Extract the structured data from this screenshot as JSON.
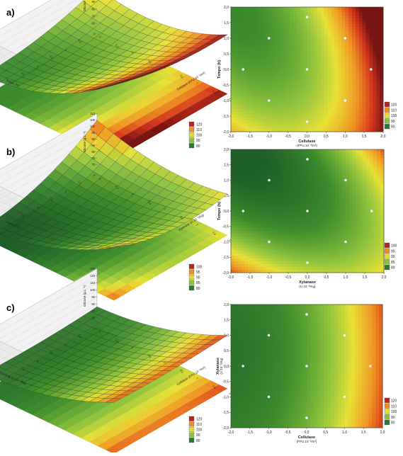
{
  "panels": [
    {
      "letter": "a)",
      "surface": {
        "zlabel": "Glicose (g.L⁻¹)",
        "xlabel": "Tempo (h)",
        "ylabel": "Celulase (FPU.10⁻³/m³)",
        "zticks": [
          "60",
          "70",
          "80",
          "90",
          "100",
          "110",
          "120",
          "130"
        ],
        "axis_ticks": [
          "2",
          "1,5",
          "1",
          "0,5",
          "0",
          "-0,5",
          "-1",
          "-1,5",
          "-2"
        ]
      },
      "legend": [
        "120",
        "110",
        "100",
        "90",
        "80"
      ],
      "chart_data": {
        "type": "contour",
        "xlabel": "Cellulase",
        "xlabel_units": "(FPU.10⁻³/m³)",
        "ylabel": "Tempo (h)",
        "xlim": [
          -2,
          2
        ],
        "ylim": [
          -2,
          2
        ],
        "xticks": [
          "-2,0",
          "-1,5",
          "-1,0",
          "-0,5",
          "0,0",
          "0,5",
          "1,0",
          "1,5",
          "2,0"
        ],
        "yticks": [
          "2,0",
          "1,5",
          "1,0",
          "0,5",
          "0,0",
          "-0,5",
          "-1,0",
          "-1,5",
          "-2,0"
        ],
        "design_points": [
          [
            -1,
            1
          ],
          [
            1,
            1
          ],
          [
            -1,
            -1
          ],
          [
            1,
            -1
          ],
          [
            -1.68,
            0
          ],
          [
            1.68,
            0
          ],
          [
            0,
            1.68
          ],
          [
            0,
            -1.68
          ],
          [
            0,
            0
          ]
        ],
        "levels": [
          80,
          90,
          100,
          110,
          120
        ],
        "level_colors": [
          "#2c7a2e",
          "#86c23a",
          "#e3df2c",
          "#ef8a1f",
          "#b8261e"
        ]
      }
    },
    {
      "letter": "b)",
      "surface": {
        "zlabel": "Glicose (g.L⁻¹)",
        "xlabel": "Tempo (h)",
        "ylabel": "Xylanase (U.10⁻³/Kg)",
        "zticks": [
          "70",
          "75",
          "80",
          "85",
          "90",
          "95",
          "100",
          "105",
          "110"
        ],
        "axis_ticks": [
          "2",
          "1,5",
          "1",
          "0,5",
          "0",
          "-0,5",
          "-1",
          "-1,5",
          "-2"
        ]
      },
      "legend": [
        "100",
        "95",
        "90",
        "85",
        "80"
      ],
      "chart_data": {
        "type": "contour",
        "xlabel": "Xylanase",
        "xlabel_units": "(U.10⁻³/Kg)",
        "ylabel": "Tempo (h)",
        "xlim": [
          -2,
          2
        ],
        "ylim": [
          -2,
          2
        ],
        "xticks": [
          "-2,0",
          "-1,5",
          "-1,0",
          "-0,5",
          "0,0",
          "0,5",
          "1,0",
          "1,5",
          "2,0"
        ],
        "yticks": [
          "2,0",
          "1,5",
          "1,0",
          "0,5",
          "0,0",
          "-0,5",
          "-1,0",
          "-1,5",
          "-2,0"
        ],
        "design_points": [
          [
            -1,
            1
          ],
          [
            1,
            1
          ],
          [
            -1,
            -1
          ],
          [
            1,
            -1
          ],
          [
            -1.68,
            0
          ],
          [
            1.68,
            0
          ],
          [
            0,
            1.68
          ],
          [
            0,
            -1.68
          ],
          [
            0,
            0
          ]
        ],
        "levels": [
          80,
          85,
          90,
          95,
          100
        ],
        "level_colors": [
          "#2c7a2e",
          "#86c23a",
          "#e3df2c",
          "#ef8a1f",
          "#b8261e"
        ]
      }
    },
    {
      "letter": "c)",
      "surface": {
        "zlabel": "Glicose (g.L⁻¹)",
        "xlabel": "Xylanase (U.10⁻³/Kg)",
        "ylabel": "Cellulase (FPU.10⁻³/m³)",
        "zticks": [
          "60",
          "70",
          "80",
          "90",
          "100",
          "110",
          "120",
          "130"
        ],
        "axis_ticks": [
          "2",
          "1,5",
          "1",
          "0,5",
          "0",
          "-0,5",
          "-1",
          "-1,5",
          "-2"
        ]
      },
      "legend": [
        "120",
        "110",
        "100",
        "90",
        "80"
      ],
      "chart_data": {
        "type": "contour",
        "xlabel": "Cellulase",
        "xlabel_units": "(FPU.10⁻³/m³)",
        "ylabel": "Xylanase",
        "ylabel_units": "(U.10⁻³/Kg)",
        "xlim": [
          -2,
          2
        ],
        "ylim": [
          -2,
          2
        ],
        "xticks": [
          "-2,0",
          "-1,5",
          "-1,0",
          "-0,5",
          "0,0",
          "0,5",
          "1,0",
          "1,5",
          "2,0"
        ],
        "yticks": [
          "2,0",
          "1,5",
          "1,0",
          "0,5",
          "0,0",
          "-0,5",
          "-1,0",
          "-1,5",
          "-2,0"
        ],
        "design_points": [
          [
            -1,
            1
          ],
          [
            1,
            1
          ],
          [
            -1,
            -1
          ],
          [
            1,
            -1
          ],
          [
            -1.68,
            0
          ],
          [
            1.68,
            0
          ],
          [
            0,
            1.68
          ],
          [
            0,
            -1.68
          ],
          [
            0,
            0
          ]
        ],
        "levels": [
          80,
          90,
          100,
          110,
          120
        ],
        "level_colors": [
          "#2c7a2e",
          "#86c23a",
          "#e3df2c",
          "#ef8a1f",
          "#b8261e"
        ]
      }
    }
  ]
}
